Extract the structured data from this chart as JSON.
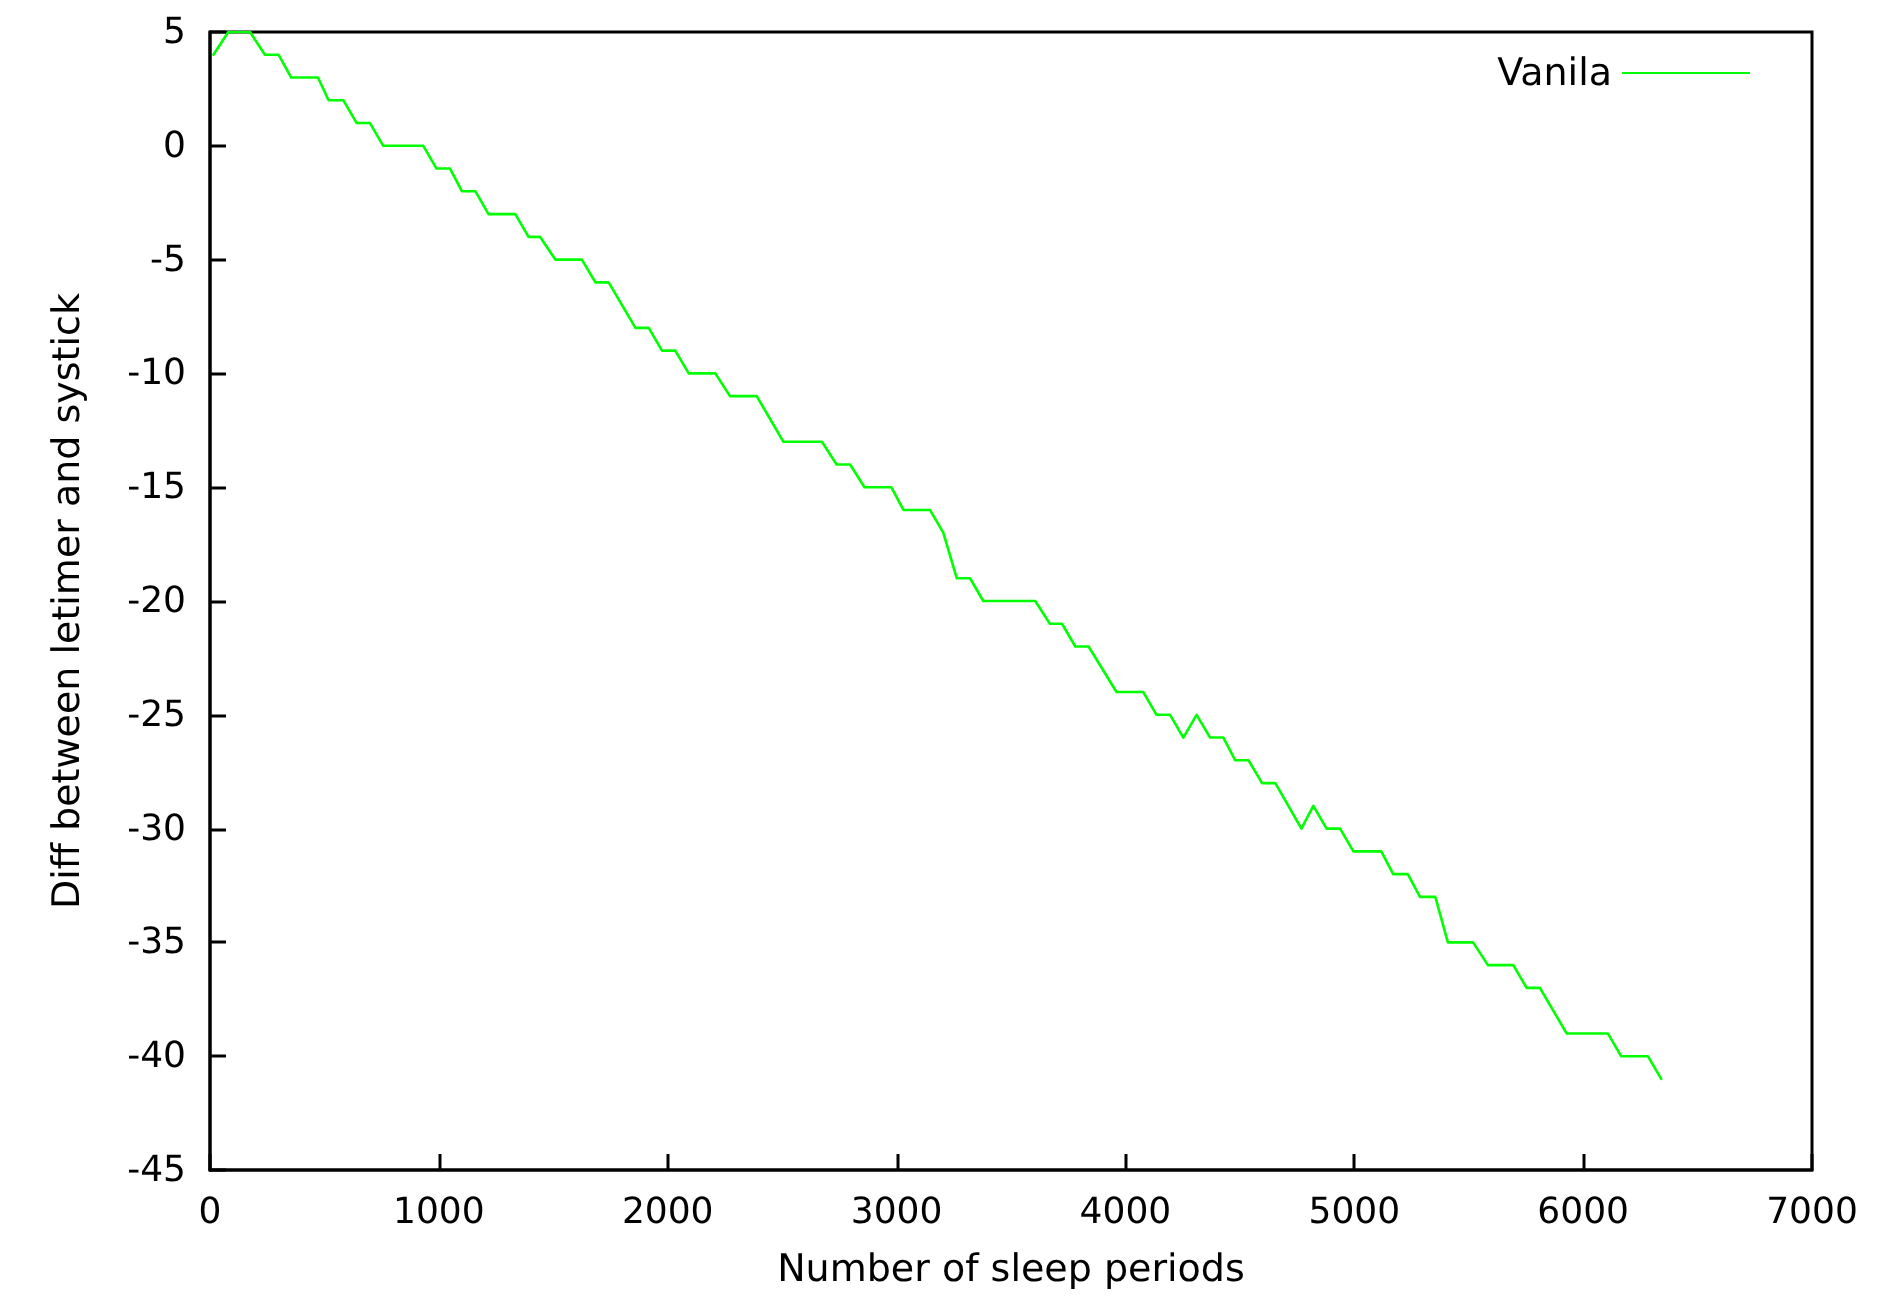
{
  "chart_data": {
    "type": "line",
    "xlabel": "Number of sleep periods",
    "ylabel": "Diff between letimer and systick",
    "xlim": [
      0,
      7000
    ],
    "xticks": [
      0,
      1000,
      2000,
      3000,
      4000,
      5000,
      6000,
      7000
    ],
    "ylim": [
      -45,
      5
    ],
    "yticks": [
      -45,
      -40,
      -35,
      -30,
      -25,
      -20,
      -15,
      -10,
      -5,
      0,
      5
    ],
    "grid": false,
    "legend": "top right",
    "marker": "none",
    "line_style": "solid",
    "series": [
      {
        "name": "Vanila",
        "color": "#00ff00",
        "x": [
          15,
          80,
          175,
          240,
          300,
          355,
          472,
          518,
          583,
          641,
          699,
          757,
          932,
          990,
          1049,
          1101,
          1160,
          1217,
          1334,
          1392,
          1442,
          1509,
          1625,
          1684,
          1742,
          1859,
          1917,
          1975,
          2033,
          2092,
          2208,
          2272,
          2389,
          2505,
          2674,
          2738,
          2797,
          2860,
          2977,
          3030,
          3146,
          3204,
          3263,
          3321,
          3379,
          3606,
          3670,
          3723,
          3781,
          3839,
          3961,
          4078,
          4136,
          4195,
          4253,
          4311,
          4370,
          4428,
          4480,
          4538,
          4597,
          4655,
          4769,
          4821,
          4879,
          4938,
          4996,
          5118,
          5170,
          5234,
          5287,
          5354,
          5409,
          5519,
          5584,
          5695,
          5753,
          5811,
          5928,
          6108,
          6166,
          6283,
          6341
        ],
        "values": [
          4,
          5,
          5,
          4,
          4,
          3,
          3,
          2,
          2,
          1,
          1,
          0,
          0,
          -1,
          -1,
          -2,
          -2,
          -3,
          -3,
          -4,
          -4,
          -5,
          -5,
          -6,
          -6,
          -8,
          -8,
          -9,
          -9,
          -10,
          -10,
          -11,
          -11,
          -13,
          -13,
          -14,
          -14,
          -15,
          -15,
          -16,
          -16,
          -17,
          -19,
          -19,
          -20,
          -20,
          -21,
          -21,
          -22,
          -22,
          -24,
          -24,
          -25,
          -25,
          -26,
          -25,
          -26,
          -26,
          -27,
          -27,
          -28,
          -28,
          -30,
          -29,
          -30,
          -30,
          -31,
          -31,
          -32,
          -32,
          -33,
          -33,
          -35,
          -35,
          -36,
          -36,
          -37,
          -37,
          -39,
          -39,
          -40,
          -40,
          -41
        ]
      }
    ]
  }
}
